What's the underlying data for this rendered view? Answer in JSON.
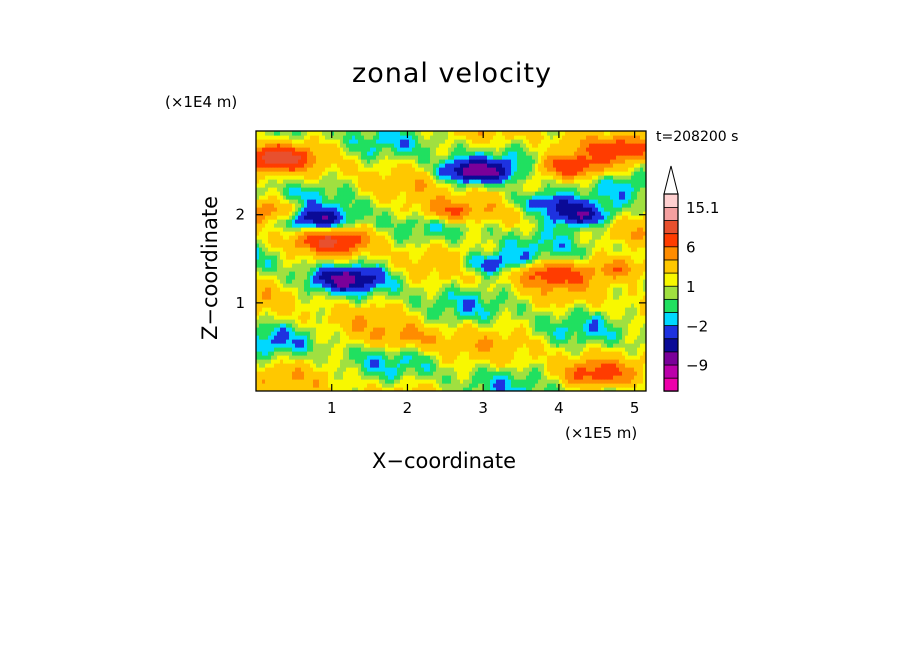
{
  "chart_data": {
    "type": "heatmap",
    "title": "zonal velocity",
    "xlabel": "X−coordinate",
    "ylabel": "Z−coordinate",
    "x_unit": "(×1E5 m)",
    "y_unit": "(×1E4 m)",
    "annotation": "t=208200 s",
    "xlim": [
      0,
      5.15
    ],
    "ylim": [
      0,
      2.95
    ],
    "x_ticks": [
      1,
      2,
      3,
      4,
      5
    ],
    "x_tick_labels": [
      "1",
      "2",
      "3",
      "4",
      "5"
    ],
    "y_ticks": [
      1,
      2
    ],
    "y_tick_labels": [
      "1",
      "2"
    ],
    "grid": false,
    "colorbar": {
      "position": "right",
      "extend": "max",
      "levels": [
        -15,
        -12,
        -9,
        -6,
        -4,
        -2,
        -1,
        0,
        1,
        2,
        4,
        6,
        9,
        12,
        15.1
      ],
      "colors": [
        "#ee00aa",
        "#bb00aa",
        "#7a0099",
        "#0a0a96",
        "#1e32e0",
        "#00d8ff",
        "#20e060",
        "#a0e040",
        "#f8f800",
        "#ffc800",
        "#ff8c00",
        "#ff3c00",
        "#e8502e",
        "#f4a0a0",
        "#ffd0d0"
      ],
      "extend_color": "#ffffff",
      "tick_labels": [
        "15.1",
        "6",
        "1",
        "−2",
        "−9"
      ],
      "tick_values": [
        15.1,
        6,
        1,
        -2,
        -9
      ]
    },
    "features": [
      {
        "x": 2.85,
        "z": 2.5,
        "value": -8
      },
      {
        "x": 0.8,
        "z": 1.95,
        "value": -7
      },
      {
        "x": 4.25,
        "z": 2.0,
        "value": -7
      },
      {
        "x": 1.2,
        "z": 1.28,
        "value": -6
      },
      {
        "x": 3.1,
        "z": 1.45,
        "value": -5
      },
      {
        "x": 3.8,
        "z": 2.15,
        "value": -6
      },
      {
        "x": 2.55,
        "z": 2.05,
        "value": 6
      },
      {
        "x": 4.15,
        "z": 2.55,
        "value": 7
      },
      {
        "x": 0.25,
        "z": 2.65,
        "value": 8
      },
      {
        "x": 1.0,
        "z": 1.7,
        "value": 6
      },
      {
        "x": 3.9,
        "z": 1.35,
        "value": 6
      },
      {
        "x": 0.2,
        "z": 2.05,
        "value": 5
      },
      {
        "x": 4.9,
        "z": 1.4,
        "value": 5
      },
      {
        "x": 4.9,
        "z": 2.75,
        "value": 5
      },
      {
        "x": 0.3,
        "z": 0.55,
        "value": -1
      },
      {
        "x": 2.0,
        "z": 0.6,
        "value": 3
      },
      {
        "x": 4.5,
        "z": 0.2,
        "value": 4
      }
    ]
  }
}
